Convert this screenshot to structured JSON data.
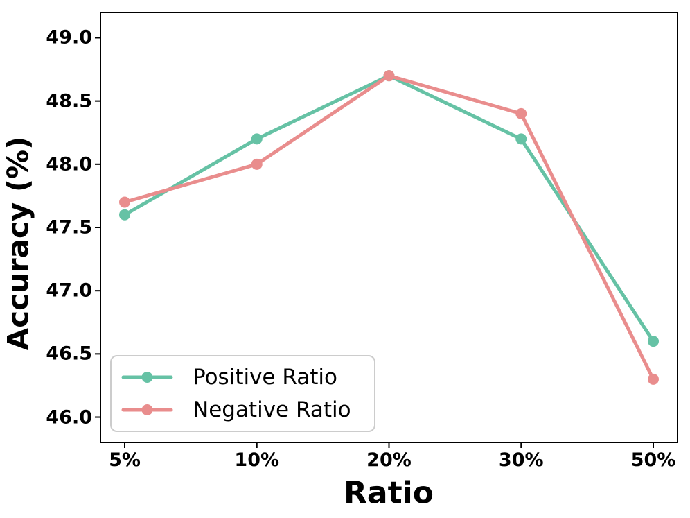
{
  "chart_data": {
    "type": "line",
    "title": "",
    "xlabel": "Ratio",
    "ylabel": "Accuracy (%)",
    "categories": [
      "5%",
      "10%",
      "20%",
      "30%",
      "50%"
    ],
    "series": [
      {
        "name": "Positive Ratio",
        "color": "#66c2a5",
        "values": [
          47.6,
          48.2,
          48.7,
          48.2,
          46.6
        ]
      },
      {
        "name": "Negative Ratio",
        "color": "#e98d8d",
        "values": [
          47.7,
          48.0,
          48.7,
          48.4,
          46.3
        ]
      }
    ],
    "ylim": [
      45.8,
      49.2
    ],
    "yticks": [
      "46.0",
      "46.5",
      "47.0",
      "47.5",
      "48.0",
      "48.5",
      "49.0"
    ],
    "grid": false,
    "legend_position": "lower left",
    "axis_color": "#000000",
    "legend_border_color": "#cccccc"
  }
}
